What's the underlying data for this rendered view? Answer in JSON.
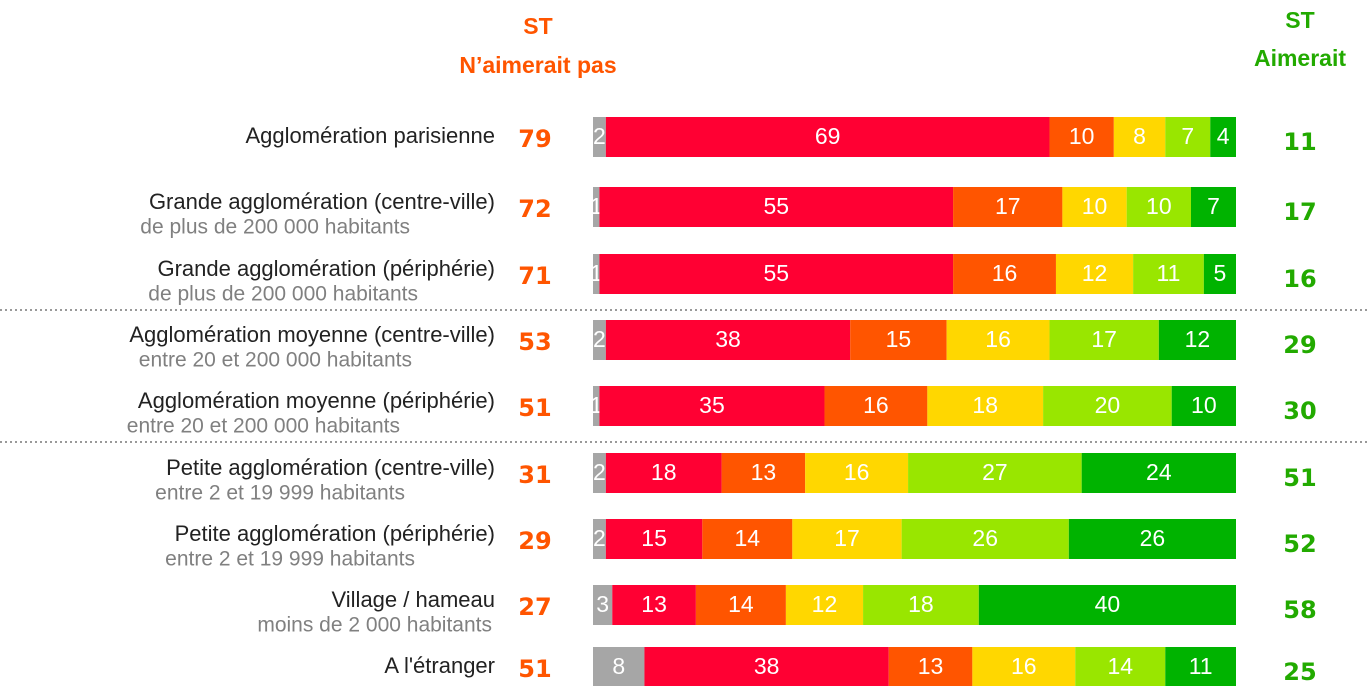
{
  "chart_data": {
    "type": "stacked-bar",
    "categories": [
      "Agglomération parisienne",
      "Grande agglomération (centre-ville)",
      "Grande agglomération  (périphérie)",
      "Agglomération moyenne (centre-ville)",
      "Agglomération moyenne (périphérie)",
      "Petite agglomération (centre-ville)",
      "Petite agglomération (périphérie)",
      "Village / hameau",
      "A l'étranger"
    ],
    "sublabels": [
      null,
      "de plus de 200 000 habitants",
      "de plus de 200 000 habitants",
      "entre 20 et 200 000 habitants",
      "entre 20 et 200 000 habitants",
      "entre 2 et 19 999 habitants",
      "entre 2 et 19 999 habitants",
      "moins de 2 000 habitants",
      null
    ],
    "xlim": [
      0,
      100
    ],
    "series": [
      {
        "color": "#a6a6a6",
        "values": [
          2,
          1,
          1,
          2,
          1,
          2,
          2,
          3,
          8
        ]
      },
      {
        "color": "#ff0033",
        "values": [
          69,
          55,
          55,
          38,
          35,
          18,
          15,
          13,
          38
        ]
      },
      {
        "color": "#ff5500",
        "values": [
          10,
          17,
          16,
          15,
          16,
          13,
          14,
          14,
          13
        ]
      },
      {
        "color": "#ffd700",
        "values": [
          8,
          10,
          12,
          16,
          18,
          16,
          17,
          12,
          16
        ]
      },
      {
        "color": "#99e600",
        "values": [
          7,
          10,
          11,
          17,
          20,
          27,
          26,
          18,
          14
        ]
      },
      {
        "color": "#00b300",
        "values": [
          4,
          7,
          5,
          12,
          10,
          24,
          26,
          40,
          11
        ]
      }
    ],
    "negative_total": {
      "title": [
        "ST",
        "N’aimerait pas"
      ],
      "color": "#ff5500",
      "values": [
        79,
        72,
        71,
        53,
        51,
        31,
        29,
        27,
        51
      ]
    },
    "positive_total": {
      "title": [
        "ST",
        "Aimerait"
      ],
      "color": "#22aa00",
      "values": [
        11,
        17,
        16,
        29,
        30,
        51,
        52,
        58,
        25
      ]
    }
  }
}
